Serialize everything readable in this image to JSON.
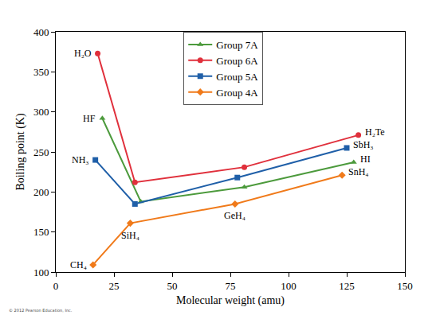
{
  "chart_data": {
    "type": "line",
    "x_label": "Molecular weight (amu)",
    "y_label": "Boiling point (K)",
    "annotations": [
      "© 2012 Pearson Education, Inc."
    ],
    "xlim": [
      0,
      150
    ],
    "xticks": [
      0,
      25,
      50,
      75,
      100,
      125,
      150
    ],
    "ylim": [
      100,
      400
    ],
    "yticks": [
      100,
      150,
      200,
      250,
      300,
      350,
      400
    ],
    "grid": false,
    "legend": "top",
    "series": [
      {
        "name": "Group 7A",
        "color": "#4c9a3c",
        "marker": "triangle-up",
        "line_style": "solid",
        "x": [
          20,
          36.5,
          81,
          128
        ],
        "values": [
          292,
          188,
          206,
          237
        ],
        "labels": [
          "HF",
          null,
          null,
          "HI"
        ]
      },
      {
        "name": "Group 6A",
        "color": "#e0303c",
        "marker": "circle",
        "line_style": "solid",
        "x": [
          18,
          34,
          81,
          130
        ],
        "values": [
          373,
          212,
          231,
          271
        ],
        "labels": [
          "H₂O",
          null,
          null,
          "H₂Te"
        ]
      },
      {
        "name": "Group 5A",
        "color": "#1f5fa8",
        "marker": "square",
        "line_style": "solid",
        "x": [
          17,
          34,
          78,
          125
        ],
        "values": [
          240,
          185,
          218,
          255
        ],
        "labels": [
          "NH₃",
          null,
          null,
          "SbH₃"
        ]
      },
      {
        "name": "Group 4A",
        "color": "#f07a1a",
        "marker": "diamond",
        "line_style": "solid",
        "x": [
          16,
          32,
          77,
          123
        ],
        "values": [
          109,
          161,
          185,
          221
        ],
        "labels": [
          "CH₄",
          "SiH₄",
          "GeH₄",
          "SnH₄"
        ]
      }
    ]
  }
}
